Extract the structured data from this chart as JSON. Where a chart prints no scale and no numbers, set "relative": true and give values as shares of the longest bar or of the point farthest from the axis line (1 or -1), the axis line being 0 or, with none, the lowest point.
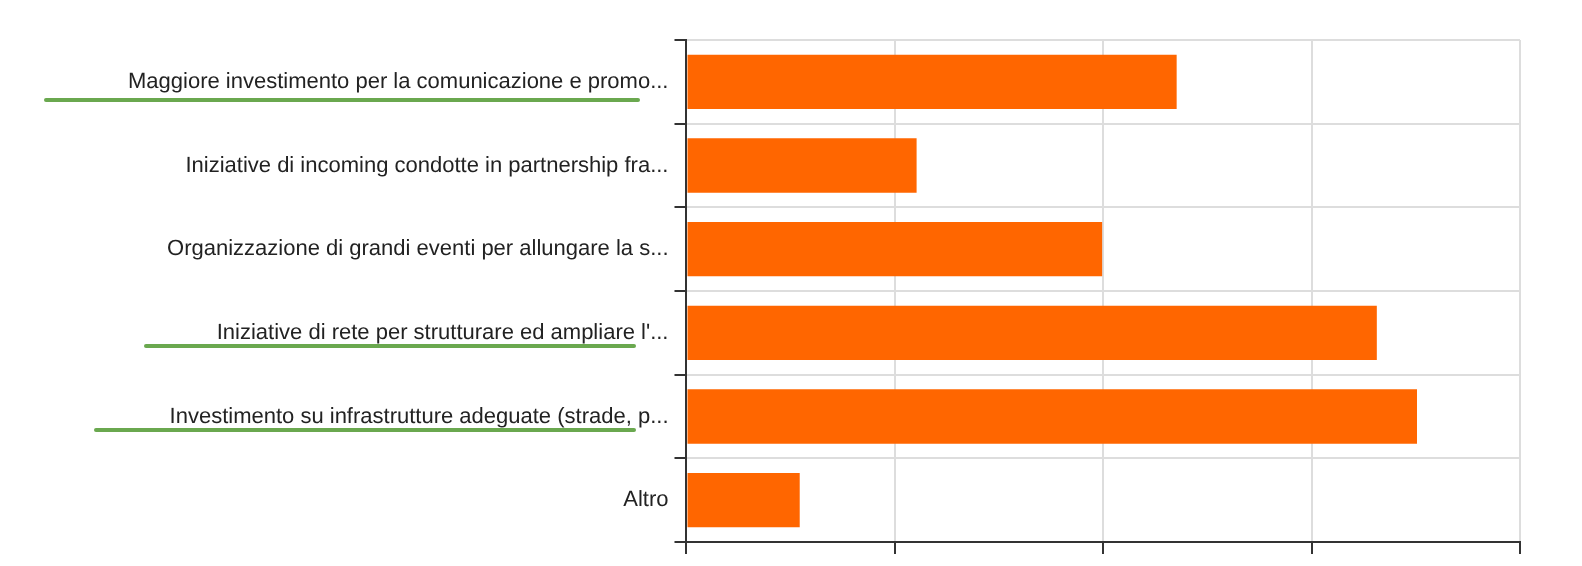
{
  "chart_data": {
    "type": "bar",
    "orientation": "horizontal",
    "relative": true,
    "grid": "x",
    "categories": [
      "Maggiore investimento per la comunicazione e promo...",
      "Iniziative di incoming condotte in partnership fra...",
      "Organizzazione di grandi eventi per allungare la s...",
      "Iniziative di rete per strutturare ed ampliare l'...",
      "Investimento su infrastrutture adeguate (strade, p...",
      "Altro"
    ],
    "values": [
      0.671,
      0.315,
      0.569,
      0.945,
      1,
      0.155
    ],
    "color": "#ff6600"
  }
}
